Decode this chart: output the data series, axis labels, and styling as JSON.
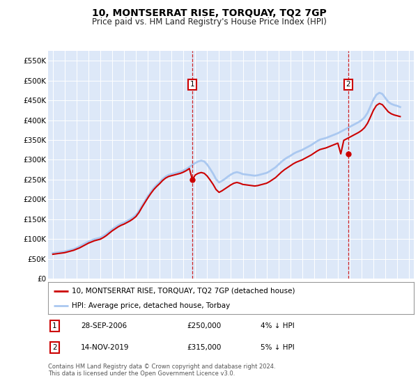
{
  "title": "10, MONTSERRAT RISE, TORQUAY, TQ2 7GP",
  "subtitle": "Price paid vs. HM Land Registry's House Price Index (HPI)",
  "background_color": "#ffffff",
  "plot_bg_color": "#dde8f8",
  "grid_color": "#ffffff",
  "ylim": [
    0,
    575000
  ],
  "yticks": [
    0,
    50000,
    100000,
    150000,
    200000,
    250000,
    300000,
    350000,
    400000,
    450000,
    500000,
    550000
  ],
  "ytick_labels": [
    "£0",
    "£50K",
    "£100K",
    "£150K",
    "£200K",
    "£250K",
    "£300K",
    "£350K",
    "£400K",
    "£450K",
    "£500K",
    "£550K"
  ],
  "transactions": [
    {
      "date_label": "28-SEP-2006",
      "price": 250000,
      "year": 2006.75,
      "pct": "4%",
      "label": "1"
    },
    {
      "date_label": "14-NOV-2019",
      "price": 315000,
      "year": 2019.87,
      "pct": "5%",
      "label": "2"
    }
  ],
  "legend_property": "10, MONTSERRAT RISE, TORQUAY, TQ2 7GP (detached house)",
  "legend_hpi": "HPI: Average price, detached house, Torbay",
  "footer": "Contains HM Land Registry data © Crown copyright and database right 2024.\nThis data is licensed under the Open Government Licence v3.0.",
  "line_color_property": "#cc0000",
  "line_color_hpi": "#aac8f0",
  "transaction_color": "#cc0000",
  "hpi_data": {
    "years": [
      1995.0,
      1995.25,
      1995.5,
      1995.75,
      1996.0,
      1996.25,
      1996.5,
      1996.75,
      1997.0,
      1997.25,
      1997.5,
      1997.75,
      1998.0,
      1998.25,
      1998.5,
      1998.75,
      1999.0,
      1999.25,
      1999.5,
      1999.75,
      2000.0,
      2000.25,
      2000.5,
      2000.75,
      2001.0,
      2001.25,
      2001.5,
      2001.75,
      2002.0,
      2002.25,
      2002.5,
      2002.75,
      2003.0,
      2003.25,
      2003.5,
      2003.75,
      2004.0,
      2004.25,
      2004.5,
      2004.75,
      2005.0,
      2005.25,
      2005.5,
      2005.75,
      2006.0,
      2006.25,
      2006.5,
      2006.75,
      2007.0,
      2007.25,
      2007.5,
      2007.75,
      2008.0,
      2008.25,
      2008.5,
      2008.75,
      2009.0,
      2009.25,
      2009.5,
      2009.75,
      2010.0,
      2010.25,
      2010.5,
      2010.75,
      2011.0,
      2011.25,
      2011.5,
      2011.75,
      2012.0,
      2012.25,
      2012.5,
      2012.75,
      2013.0,
      2013.25,
      2013.5,
      2013.75,
      2014.0,
      2014.25,
      2014.5,
      2014.75,
      2015.0,
      2015.25,
      2015.5,
      2015.75,
      2016.0,
      2016.25,
      2016.5,
      2016.75,
      2017.0,
      2017.25,
      2017.5,
      2017.75,
      2018.0,
      2018.25,
      2018.5,
      2018.75,
      2019.0,
      2019.25,
      2019.5,
      2019.75,
      2020.0,
      2020.25,
      2020.5,
      2020.75,
      2021.0,
      2021.25,
      2021.5,
      2021.75,
      2022.0,
      2022.25,
      2022.5,
      2022.75,
      2023.0,
      2023.25,
      2023.5,
      2023.75,
      2024.0,
      2024.25
    ],
    "values": [
      65000,
      66000,
      67000,
      68000,
      69000,
      71000,
      73000,
      75000,
      78000,
      82000,
      86000,
      90000,
      94000,
      97000,
      100000,
      102000,
      104000,
      108000,
      113000,
      119000,
      125000,
      130000,
      135000,
      139000,
      142000,
      146000,
      150000,
      155000,
      161000,
      171000,
      184000,
      196000,
      208000,
      219000,
      229000,
      237000,
      244000,
      252000,
      258000,
      262000,
      264000,
      266000,
      268000,
      270000,
      273000,
      277000,
      282000,
      287000,
      292000,
      296000,
      298000,
      296000,
      288000,
      277000,
      265000,
      251000,
      243000,
      247000,
      252000,
      258000,
      263000,
      267000,
      269000,
      267000,
      264000,
      263000,
      262000,
      261000,
      260000,
      261000,
      263000,
      265000,
      267000,
      271000,
      276000,
      281000,
      288000,
      295000,
      301000,
      306000,
      310000,
      315000,
      319000,
      322000,
      325000,
      329000,
      333000,
      337000,
      342000,
      347000,
      351000,
      353000,
      355000,
      358000,
      361000,
      364000,
      367000,
      371000,
      375000,
      379000,
      383000,
      387000,
      391000,
      395000,
      400000,
      407000,
      418000,
      435000,
      452000,
      464000,
      469000,
      466000,
      456000,
      446000,
      441000,
      438000,
      436000,
      433000
    ]
  },
  "property_data": {
    "years": [
      1995.0,
      1995.25,
      1995.5,
      1995.75,
      1996.0,
      1996.25,
      1996.5,
      1996.75,
      1997.0,
      1997.25,
      1997.5,
      1997.75,
      1998.0,
      1998.25,
      1998.5,
      1998.75,
      1999.0,
      1999.25,
      1999.5,
      1999.75,
      2000.0,
      2000.25,
      2000.5,
      2000.75,
      2001.0,
      2001.25,
      2001.5,
      2001.75,
      2002.0,
      2002.25,
      2002.5,
      2002.75,
      2003.0,
      2003.25,
      2003.5,
      2003.75,
      2004.0,
      2004.25,
      2004.5,
      2004.75,
      2005.0,
      2005.25,
      2005.5,
      2005.75,
      2006.0,
      2006.25,
      2006.5,
      2006.75,
      2007.0,
      2007.25,
      2007.5,
      2007.75,
      2008.0,
      2008.25,
      2008.5,
      2008.75,
      2009.0,
      2009.25,
      2009.5,
      2009.75,
      2010.0,
      2010.25,
      2010.5,
      2010.75,
      2011.0,
      2011.25,
      2011.5,
      2011.75,
      2012.0,
      2012.25,
      2012.5,
      2012.75,
      2013.0,
      2013.25,
      2013.5,
      2013.75,
      2014.0,
      2014.25,
      2014.5,
      2014.75,
      2015.0,
      2015.25,
      2015.5,
      2015.75,
      2016.0,
      2016.25,
      2016.5,
      2016.75,
      2017.0,
      2017.25,
      2017.5,
      2017.75,
      2018.0,
      2018.25,
      2018.5,
      2018.75,
      2019.0,
      2019.25,
      2019.5,
      2019.75,
      2020.0,
      2020.25,
      2020.5,
      2020.75,
      2021.0,
      2021.25,
      2021.5,
      2021.75,
      2022.0,
      2022.25,
      2022.5,
      2022.75,
      2023.0,
      2023.25,
      2023.5,
      2023.75,
      2024.0,
      2024.25
    ],
    "values": [
      62000,
      63000,
      64000,
      65000,
      66000,
      68000,
      70000,
      72000,
      75000,
      78000,
      82000,
      86000,
      90000,
      93000,
      96000,
      98000,
      100000,
      104000,
      109000,
      115000,
      121000,
      126000,
      131000,
      135000,
      138000,
      142000,
      146000,
      151000,
      157000,
      167000,
      180000,
      192000,
      204000,
      215000,
      225000,
      233000,
      240000,
      248000,
      254000,
      258000,
      260000,
      262000,
      264000,
      266000,
      269000,
      273000,
      278000,
      250000,
      262000,
      266000,
      268000,
      266000,
      259000,
      249000,
      238000,
      225000,
      218000,
      222000,
      227000,
      232000,
      237000,
      241000,
      243000,
      241000,
      238000,
      237000,
      236000,
      235000,
      234000,
      235000,
      237000,
      239000,
      241000,
      245000,
      250000,
      255000,
      262000,
      269000,
      275000,
      280000,
      285000,
      290000,
      294000,
      297000,
      300000,
      304000,
      308000,
      312000,
      317000,
      322000,
      326000,
      328000,
      330000,
      333000,
      336000,
      339000,
      342000,
      315000,
      349000,
      353000,
      357000,
      361000,
      365000,
      369000,
      374000,
      381000,
      392000,
      408000,
      425000,
      437000,
      442000,
      439000,
      430000,
      421000,
      416000,
      413000,
      411000,
      409000
    ]
  }
}
